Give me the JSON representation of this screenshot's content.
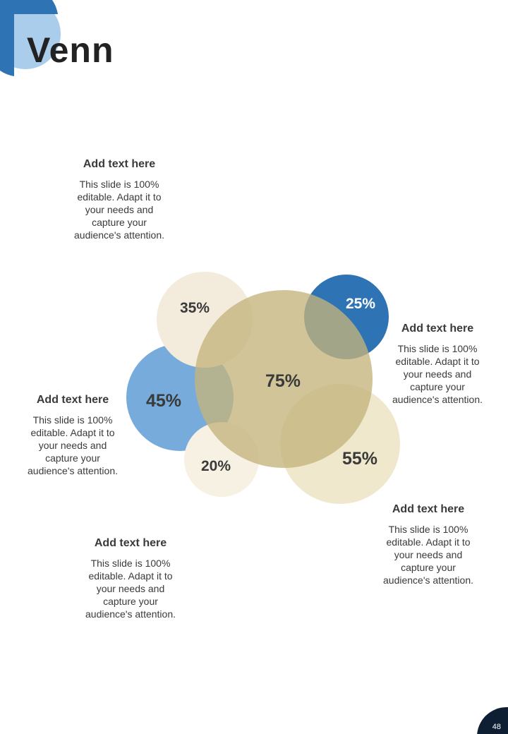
{
  "slide": {
    "title": "Venn",
    "page_number": "48"
  },
  "colors": {
    "accent_dark_blue": "#2e74b5",
    "accent_light_blue": "#aacdeb",
    "medium_blue": "#6aa4d8",
    "cream": "#f3ecdc",
    "tan": "#c4b47c",
    "light_tan": "#efe6c8",
    "dark_badge": "#0f1f33"
  },
  "venn": {
    "circles": [
      {
        "id": "c35",
        "label": "35%"
      },
      {
        "id": "c25",
        "label": "25%"
      },
      {
        "id": "c45",
        "label": "45%"
      },
      {
        "id": "c75",
        "label": "75%"
      },
      {
        "id": "c55",
        "label": "55%"
      },
      {
        "id": "c20",
        "label": "20%"
      }
    ]
  },
  "text_blocks": [
    {
      "heading": "Add text here",
      "lines": [
        "This slide is 100%",
        "editable. Adapt it to",
        "your needs and",
        "capture your",
        "audience's attention."
      ]
    },
    {
      "heading": "Add text here",
      "lines": [
        "This slide is 100%",
        "editable. Adapt it to",
        "your needs and",
        "capture your",
        "audience's attention."
      ]
    },
    {
      "heading": "Add text here",
      "lines": [
        "This slide is 100%",
        "editable. Adapt it to",
        "your needs and",
        "capture your",
        "audience's attention."
      ]
    },
    {
      "heading": "Add text here",
      "lines": [
        "This slide is 100%",
        "editable. Adapt it to",
        "your needs and",
        "capture your",
        "audience's attention."
      ]
    },
    {
      "heading": "Add text here",
      "lines": [
        "This slide is 100%",
        "editable. Adapt it to",
        "your needs and",
        "capture your",
        "audience's attention."
      ]
    }
  ]
}
